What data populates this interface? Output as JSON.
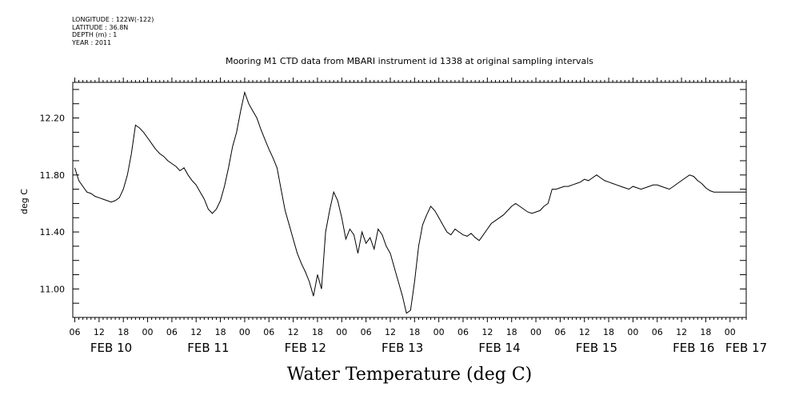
{
  "metadata": {
    "longitude": "LONGITUDE : 122W(-122)",
    "latitude": "LATITUDE : 36.8N",
    "depth": "DEPTH (m) : 1",
    "year": "YEAR : 2011"
  },
  "chart_data": {
    "type": "line",
    "title": "Mooring M1 CTD data from MBARI instrument id 1338 at original sampling intervals",
    "xlabel": "Water Temperature (deg C)",
    "ylabel": "deg C",
    "xlim_hours": [
      -0.5,
      166
    ],
    "ylim": [
      10.8,
      12.45
    ],
    "y_ticks": [
      11.0,
      11.4,
      11.8,
      12.2
    ],
    "y_tick_labels": [
      "11.00",
      "11.40",
      "11.80",
      "12.20"
    ],
    "x_hour_ticks": [
      {
        "hour": 0,
        "label": "06"
      },
      {
        "hour": 6,
        "label": "12"
      },
      {
        "hour": 12,
        "label": "18"
      },
      {
        "hour": 18,
        "label": "00"
      },
      {
        "hour": 24,
        "label": "06"
      },
      {
        "hour": 30,
        "label": "12"
      },
      {
        "hour": 36,
        "label": "18"
      },
      {
        "hour": 42,
        "label": "00"
      },
      {
        "hour": 48,
        "label": "06"
      },
      {
        "hour": 54,
        "label": "12"
      },
      {
        "hour": 60,
        "label": "18"
      },
      {
        "hour": 66,
        "label": "00"
      },
      {
        "hour": 72,
        "label": "06"
      },
      {
        "hour": 78,
        "label": "12"
      },
      {
        "hour": 84,
        "label": "18"
      },
      {
        "hour": 90,
        "label": "00"
      },
      {
        "hour": 96,
        "label": "06"
      },
      {
        "hour": 102,
        "label": "12"
      },
      {
        "hour": 108,
        "label": "18"
      },
      {
        "hour": 114,
        "label": "00"
      },
      {
        "hour": 120,
        "label": "06"
      },
      {
        "hour": 126,
        "label": "12"
      },
      {
        "hour": 132,
        "label": "18"
      },
      {
        "hour": 138,
        "label": "00"
      },
      {
        "hour": 144,
        "label": "06"
      },
      {
        "hour": 150,
        "label": "12"
      },
      {
        "hour": 156,
        "label": "18"
      },
      {
        "hour": 162,
        "label": "00"
      }
    ],
    "x_day_labels": [
      {
        "hour": 9,
        "label": "FEB 10"
      },
      {
        "hour": 33,
        "label": "FEB 11"
      },
      {
        "hour": 57,
        "label": "FEB 12"
      },
      {
        "hour": 81,
        "label": "FEB 13"
      },
      {
        "hour": 105,
        "label": "FEB 14"
      },
      {
        "hour": 129,
        "label": "FEB 15"
      },
      {
        "hour": 153,
        "label": "FEB 16"
      },
      {
        "hour": 166,
        "label": "FEB 17"
      }
    ],
    "series": [
      {
        "x": [
          0,
          1,
          2,
          3,
          4,
          5,
          6,
          7,
          8,
          9,
          10,
          11,
          12,
          13,
          14,
          15,
          16,
          17,
          18,
          19,
          20,
          21,
          22,
          23,
          24,
          25,
          26,
          27,
          28,
          29,
          30,
          31,
          32,
          33,
          34,
          35,
          36,
          37,
          38,
          39,
          40,
          41,
          42,
          43,
          44,
          45,
          46,
          47,
          48,
          49,
          50,
          51,
          52,
          53,
          54,
          55,
          56,
          57,
          58,
          59,
          60,
          61,
          62,
          63,
          64,
          65,
          66,
          67,
          68,
          69,
          70,
          71,
          72,
          73,
          74,
          75,
          76,
          77,
          78,
          79,
          80,
          81,
          82,
          83,
          84,
          85,
          86,
          87,
          88,
          89,
          90,
          91,
          92,
          93,
          94,
          95,
          96,
          97,
          98,
          99,
          100,
          101,
          102,
          103,
          104,
          105,
          106,
          107,
          108,
          109,
          110,
          111,
          112,
          113,
          114,
          115,
          116,
          117,
          118,
          119,
          120,
          121,
          122,
          123,
          124,
          125,
          126,
          127,
          128,
          129,
          130,
          131,
          132,
          133,
          134,
          135,
          136,
          137,
          138,
          139,
          140,
          141,
          142,
          143,
          144,
          145,
          146,
          147,
          148,
          149,
          150,
          151,
          152,
          153,
          154,
          155,
          156,
          157,
          158,
          159,
          160,
          161,
          162,
          163,
          164,
          165,
          166
        ],
        "y": [
          11.85,
          11.76,
          11.72,
          11.68,
          11.67,
          11.65,
          11.64,
          11.63,
          11.62,
          11.61,
          11.62,
          11.64,
          11.7,
          11.8,
          11.95,
          12.15,
          12.13,
          12.1,
          12.06,
          12.02,
          11.98,
          11.95,
          11.93,
          11.9,
          11.88,
          11.86,
          11.83,
          11.85,
          11.8,
          11.76,
          11.73,
          11.68,
          11.63,
          11.56,
          11.53,
          11.56,
          11.62,
          11.72,
          11.85,
          12.0,
          12.1,
          12.25,
          12.38,
          12.3,
          12.25,
          12.2,
          12.12,
          12.05,
          11.98,
          11.92,
          11.85,
          11.7,
          11.55,
          11.45,
          11.35,
          11.25,
          11.18,
          11.12,
          11.05,
          10.95,
          11.1,
          11.0,
          11.4,
          11.55,
          11.68,
          11.62,
          11.5,
          11.35,
          11.42,
          11.38,
          11.25,
          11.4,
          11.32,
          11.36,
          11.28,
          11.42,
          11.38,
          11.3,
          11.25,
          11.15,
          11.05,
          10.95,
          10.83,
          10.85,
          11.05,
          11.3,
          11.45,
          11.52,
          11.58,
          11.55,
          11.5,
          11.45,
          11.4,
          11.38,
          11.42,
          11.4,
          11.38,
          11.37,
          11.39,
          11.36,
          11.34,
          11.38,
          11.42,
          11.46,
          11.48,
          11.5,
          11.52,
          11.55,
          11.58,
          11.6,
          11.58,
          11.56,
          11.54,
          11.53,
          11.54,
          11.55,
          11.58,
          11.6,
          11.7,
          11.7,
          11.71,
          11.72,
          11.72,
          11.73,
          11.74,
          11.75,
          11.77,
          11.76,
          11.78,
          11.8,
          11.78,
          11.76,
          11.75,
          11.74,
          11.73,
          11.72,
          11.71,
          11.7,
          11.72,
          11.71,
          11.7,
          11.71,
          11.72,
          11.73,
          11.73,
          11.72,
          11.71,
          11.7,
          11.72,
          11.74,
          11.76,
          11.78,
          11.8,
          11.79,
          11.76,
          11.74,
          11.71,
          11.69,
          11.68,
          11.68,
          11.68,
          11.68,
          11.68,
          11.68,
          11.68,
          11.68,
          11.68
        ]
      }
    ],
    "grid": false,
    "legend": "none"
  }
}
